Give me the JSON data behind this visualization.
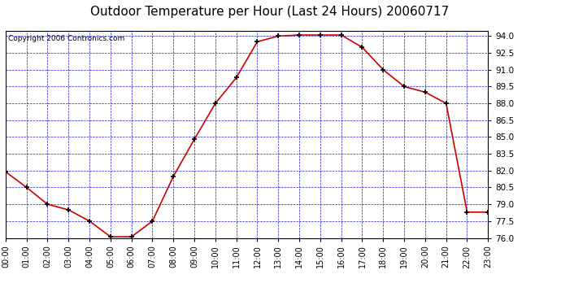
{
  "title": "Outdoor Temperature per Hour (Last 24 Hours) 20060717",
  "copyright": "Copyright 2006 Contronics.com",
  "hours": [
    0,
    1,
    2,
    3,
    4,
    5,
    6,
    7,
    8,
    9,
    10,
    11,
    12,
    13,
    14,
    15,
    16,
    17,
    18,
    19,
    20,
    21,
    22,
    23
  ],
  "temps": [
    81.9,
    80.5,
    79.0,
    78.5,
    77.5,
    76.1,
    76.1,
    77.5,
    81.5,
    84.8,
    88.0,
    90.3,
    93.5,
    94.0,
    94.1,
    94.1,
    94.1,
    93.0,
    91.0,
    89.5,
    89.0,
    88.0,
    78.3,
    78.3
  ],
  "line_color": "#cc0000",
  "marker": "+",
  "marker_color": "#000000",
  "bg_color": "#ffffff",
  "plot_bg_color": "#ffffff",
  "grid_color": "#0000cc",
  "axis_color": "#000000",
  "ylim": [
    76.0,
    94.5
  ],
  "yticks": [
    76.0,
    77.5,
    79.0,
    80.5,
    82.0,
    83.5,
    85.0,
    86.5,
    88.0,
    89.5,
    91.0,
    92.5,
    94.0
  ],
  "title_fontsize": 11,
  "copyright_fontsize": 6.5,
  "tick_fontsize": 7,
  "ytick_fontsize": 7.5
}
